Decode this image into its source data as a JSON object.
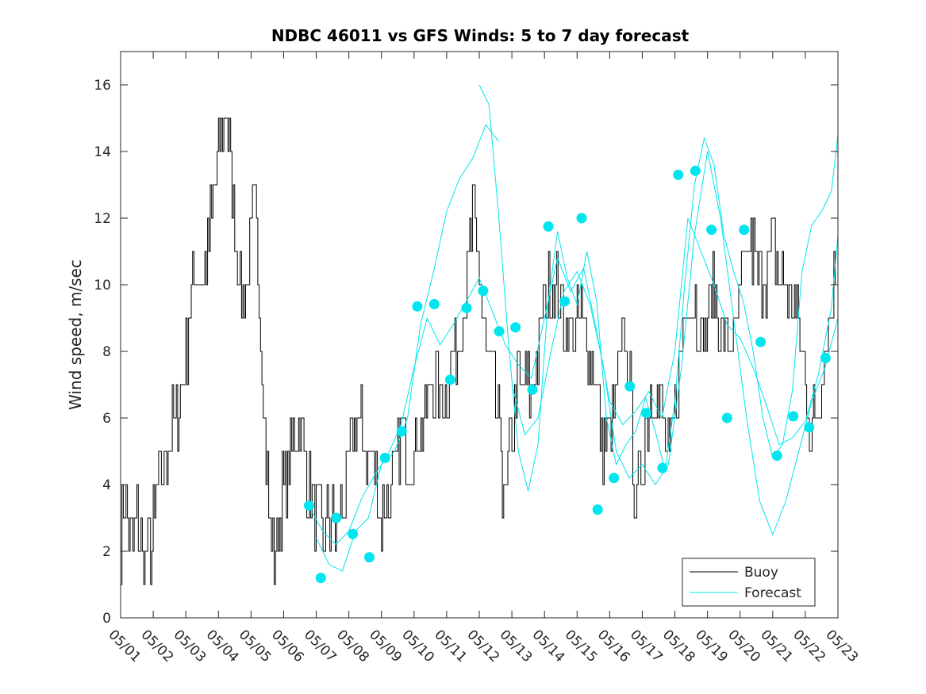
{
  "chart_data": {
    "type": "line",
    "title": "NDBC 46011 vs GFS Winds: 5 to 7 day forecast",
    "xlabel": "",
    "ylabel": "Wind speed, m/sec",
    "x_tick_labels": [
      "05/01",
      "05/02",
      "05/03",
      "05/04",
      "05/05",
      "05/06",
      "05/07",
      "05/08",
      "05/09",
      "05/10",
      "05/11",
      "05/12",
      "05/13",
      "05/14",
      "05/15",
      "05/16",
      "05/17",
      "05/18",
      "05/19",
      "05/20",
      "05/21",
      "05/22",
      "05/23"
    ],
    "xlim_days": [
      1,
      23
    ],
    "ylim": [
      0,
      17
    ],
    "y_ticks": [
      0,
      2,
      4,
      6,
      8,
      10,
      12,
      14,
      16
    ],
    "grid": false,
    "legend_position": "bottom-right",
    "colors": {
      "buoy": "#000000",
      "forecast": "#00e5ee",
      "markers": "#00e5ee",
      "axes": "#262626"
    },
    "legend": [
      {
        "label": "Buoy",
        "color": "#000000"
      },
      {
        "label": "Forecast",
        "color": "#00e5ee"
      }
    ],
    "buoy_envelope": [
      [
        1.0,
        2.5
      ],
      [
        1.1,
        3.5
      ],
      [
        1.3,
        2
      ],
      [
        1.5,
        3
      ],
      [
        1.7,
        1.5
      ],
      [
        1.9,
        2
      ],
      [
        2.1,
        3.5
      ],
      [
        2.3,
        4.5
      ],
      [
        2.5,
        5.5
      ],
      [
        2.7,
        6
      ],
      [
        2.9,
        7
      ],
      [
        3.1,
        9
      ],
      [
        3.3,
        10.5
      ],
      [
        3.5,
        10
      ],
      [
        3.7,
        11.5
      ],
      [
        3.9,
        13
      ],
      [
        4.1,
        14.5
      ],
      [
        4.2,
        15.5
      ],
      [
        4.35,
        14
      ],
      [
        4.5,
        12
      ],
      [
        4.65,
        10.5
      ],
      [
        4.8,
        9.5
      ],
      [
        4.95,
        11
      ],
      [
        5.1,
        12.5
      ],
      [
        5.25,
        10
      ],
      [
        5.4,
        6
      ],
      [
        5.55,
        3
      ],
      [
        5.7,
        1.5
      ],
      [
        5.85,
        3
      ],
      [
        6.0,
        4
      ],
      [
        6.2,
        4.5
      ],
      [
        6.4,
        6
      ],
      [
        6.6,
        5
      ],
      [
        6.8,
        4
      ],
      [
        7.0,
        3
      ],
      [
        7.2,
        2.5
      ],
      [
        7.4,
        3
      ],
      [
        7.6,
        2.5
      ],
      [
        7.8,
        3.5
      ],
      [
        8.0,
        4.5
      ],
      [
        8.2,
        6
      ],
      [
        8.4,
        5.5
      ],
      [
        8.6,
        5
      ],
      [
        8.8,
        4.5
      ],
      [
        9.0,
        3
      ],
      [
        9.2,
        3.5
      ],
      [
        9.4,
        4
      ],
      [
        9.6,
        5.5
      ],
      [
        9.8,
        4.5
      ],
      [
        10.0,
        5
      ],
      [
        10.2,
        5.5
      ],
      [
        10.4,
        6.5
      ],
      [
        10.6,
        7
      ],
      [
        10.8,
        6.5
      ],
      [
        11.0,
        7
      ],
      [
        11.2,
        7.5
      ],
      [
        11.4,
        9
      ],
      [
        11.6,
        10
      ],
      [
        11.8,
        12
      ],
      [
        12.0,
        10.5
      ],
      [
        12.2,
        8
      ],
      [
        12.4,
        7
      ],
      [
        12.6,
        5.5
      ],
      [
        12.8,
        3.5
      ],
      [
        13.0,
        5.5
      ],
      [
        13.2,
        7
      ],
      [
        13.4,
        7
      ],
      [
        13.6,
        6.5
      ],
      [
        13.8,
        8
      ],
      [
        14.0,
        9.5
      ],
      [
        14.2,
        10
      ],
      [
        14.4,
        10
      ],
      [
        14.6,
        9
      ],
      [
        14.8,
        8.5
      ],
      [
        15.0,
        9
      ],
      [
        15.2,
        9
      ],
      [
        15.4,
        8
      ],
      [
        15.6,
        7
      ],
      [
        15.8,
        5
      ],
      [
        16.0,
        5.5
      ],
      [
        16.2,
        7
      ],
      [
        16.4,
        8.5
      ],
      [
        16.6,
        7.5
      ],
      [
        16.8,
        3
      ],
      [
        17.0,
        5
      ],
      [
        17.2,
        6.5
      ],
      [
        17.4,
        7
      ],
      [
        17.6,
        6
      ],
      [
        17.8,
        4.5
      ],
      [
        18.0,
        6
      ],
      [
        18.2,
        8
      ],
      [
        18.4,
        10
      ],
      [
        18.6,
        9.5
      ],
      [
        18.8,
        8.5
      ],
      [
        19.0,
        9
      ],
      [
        19.2,
        10
      ],
      [
        19.4,
        9
      ],
      [
        19.6,
        8
      ],
      [
        19.8,
        8.5
      ],
      [
        20.0,
        9.5
      ],
      [
        20.2,
        11
      ],
      [
        20.4,
        11
      ],
      [
        20.6,
        10
      ],
      [
        20.8,
        10.5
      ],
      [
        21.0,
        11
      ],
      [
        21.2,
        10.5
      ],
      [
        21.4,
        10
      ],
      [
        21.6,
        9.5
      ],
      [
        21.8,
        9
      ],
      [
        22.0,
        7
      ],
      [
        22.2,
        5.5
      ],
      [
        22.4,
        6.5
      ],
      [
        22.6,
        8.5
      ],
      [
        22.8,
        9.5
      ],
      [
        23.0,
        11
      ]
    ],
    "forecast_series": [
      {
        "points": [
          [
            6.8,
            3.3
          ],
          [
            7.2,
            2.6
          ],
          [
            7.6,
            2.2
          ],
          [
            8.0,
            2.6
          ],
          [
            8.4,
            3.6
          ],
          [
            8.8,
            4.3
          ],
          [
            9.2,
            4.9
          ],
          [
            9.6,
            5.8
          ],
          [
            10.0,
            7.5
          ],
          [
            10.4,
            9.0
          ],
          [
            10.8,
            8.2
          ],
          [
            11.2,
            8.8
          ],
          [
            11.6,
            9.5
          ],
          [
            12.0,
            10.2
          ],
          [
            12.4,
            9.2
          ],
          [
            12.8,
            8.2
          ],
          [
            13.2,
            7.6
          ],
          [
            13.6,
            7.2
          ],
          [
            14.0,
            9.0
          ],
          [
            14.4,
            10.8
          ],
          [
            14.8,
            9.8
          ],
          [
            15.2,
            10.5
          ],
          [
            15.6,
            8.6
          ],
          [
            16.0,
            6.5
          ],
          [
            16.4,
            5.8
          ],
          [
            16.8,
            6.2
          ],
          [
            17.2,
            6.8
          ],
          [
            17.6,
            6.0
          ],
          [
            18.0,
            8.0
          ],
          [
            18.4,
            12.0
          ],
          [
            18.8,
            11.0
          ],
          [
            19.2,
            10.0
          ],
          [
            19.6,
            8.8
          ],
          [
            20.0,
            8.4
          ],
          [
            20.4,
            7.5
          ],
          [
            20.8,
            6.4
          ],
          [
            21.2,
            5.2
          ],
          [
            21.6,
            5.4
          ],
          [
            22.0,
            5.9
          ],
          [
            22.4,
            7.3
          ],
          [
            22.8,
            9.3
          ],
          [
            23.0,
            11.5
          ]
        ]
      },
      {
        "points": [
          [
            7.0,
            2.4
          ],
          [
            7.4,
            1.6
          ],
          [
            7.8,
            1.4
          ],
          [
            8.2,
            2.6
          ],
          [
            8.6,
            3.0
          ],
          [
            9.0,
            4.6
          ],
          [
            9.4,
            5.0
          ],
          [
            9.8,
            6.0
          ],
          [
            10.2,
            8.8
          ],
          [
            10.6,
            10.4
          ],
          [
            11.0,
            12.2
          ],
          [
            11.4,
            13.2
          ],
          [
            11.8,
            13.8
          ],
          [
            12.2,
            14.8
          ],
          [
            12.6,
            14.3
          ]
        ]
      },
      {
        "points": [
          [
            12.0,
            16.0
          ],
          [
            12.3,
            15.4
          ],
          [
            12.6,
            12.0
          ],
          [
            12.9,
            8.2
          ],
          [
            13.2,
            5.0
          ],
          [
            13.5,
            3.8
          ],
          [
            13.8,
            5.2
          ],
          [
            14.1,
            9.4
          ],
          [
            14.4,
            11.6
          ],
          [
            14.7,
            10.2
          ],
          [
            15.0,
            9.4
          ],
          [
            15.3,
            11.0
          ],
          [
            15.6,
            9.5
          ],
          [
            15.9,
            6.0
          ],
          [
            16.2,
            4.6
          ],
          [
            16.5,
            5.2
          ],
          [
            16.8,
            5.6
          ],
          [
            17.1,
            6.6
          ],
          [
            17.4,
            5.6
          ],
          [
            17.7,
            4.4
          ],
          [
            18.0,
            6.5
          ],
          [
            18.3,
            10.0
          ],
          [
            18.6,
            13.0
          ],
          [
            18.9,
            14.4
          ],
          [
            19.2,
            13.6
          ],
          [
            19.5,
            11.5
          ],
          [
            19.8,
            10.4
          ],
          [
            20.1,
            9.5
          ],
          [
            20.4,
            8.0
          ],
          [
            20.7,
            6.0
          ],
          [
            21.0,
            4.8
          ],
          [
            21.3,
            5.2
          ],
          [
            21.6,
            6.8
          ],
          [
            21.9,
            10.4
          ],
          [
            22.2,
            11.8
          ],
          [
            22.5,
            12.2
          ],
          [
            22.8,
            12.8
          ],
          [
            23.0,
            14.5
          ]
        ]
      },
      {
        "points": [
          [
            13.0,
            7.0
          ],
          [
            13.4,
            5.5
          ],
          [
            13.8,
            6.0
          ],
          [
            14.2,
            8.0
          ],
          [
            14.6,
            9.8
          ],
          [
            15.0,
            10.4
          ],
          [
            15.4,
            9.4
          ],
          [
            15.8,
            7.6
          ],
          [
            16.2,
            5.0
          ],
          [
            16.6,
            4.2
          ],
          [
            17.0,
            4.6
          ],
          [
            17.4,
            4.0
          ],
          [
            17.8,
            4.6
          ],
          [
            18.2,
            7.5
          ],
          [
            18.6,
            11.5
          ],
          [
            19.0,
            14.0
          ],
          [
            19.4,
            12.0
          ],
          [
            19.8,
            9.0
          ],
          [
            20.2,
            6.0
          ],
          [
            20.6,
            3.5
          ],
          [
            21.0,
            2.5
          ],
          [
            21.4,
            3.5
          ],
          [
            21.8,
            5.0
          ],
          [
            22.2,
            6.5
          ],
          [
            22.6,
            7.5
          ],
          [
            23.0,
            9.0
          ]
        ]
      }
    ],
    "forecast_markers": [
      [
        6.78,
        3.37
      ],
      [
        7.14,
        1.2
      ],
      [
        7.61,
        3.0
      ],
      [
        8.12,
        2.52
      ],
      [
        8.63,
        1.82
      ],
      [
        9.11,
        4.8
      ],
      [
        9.62,
        5.6
      ],
      [
        10.1,
        9.35
      ],
      [
        10.62,
        9.42
      ],
      [
        11.11,
        7.15
      ],
      [
        11.61,
        9.3
      ],
      [
        12.12,
        9.82
      ],
      [
        12.61,
        8.6
      ],
      [
        13.11,
        8.72
      ],
      [
        13.63,
        6.85
      ],
      [
        14.12,
        11.75
      ],
      [
        14.62,
        9.5
      ],
      [
        15.14,
        12.0
      ],
      [
        15.63,
        3.25
      ],
      [
        16.13,
        4.2
      ],
      [
        16.62,
        6.95
      ],
      [
        17.12,
        6.15
      ],
      [
        17.62,
        4.5
      ],
      [
        18.1,
        13.3
      ],
      [
        18.63,
        13.42
      ],
      [
        19.12,
        11.65
      ],
      [
        19.6,
        6.0
      ],
      [
        20.12,
        11.65
      ],
      [
        20.63,
        8.28
      ],
      [
        21.13,
        4.87
      ],
      [
        21.63,
        6.05
      ],
      [
        22.12,
        5.72
      ],
      [
        22.62,
        7.8
      ]
    ]
  }
}
